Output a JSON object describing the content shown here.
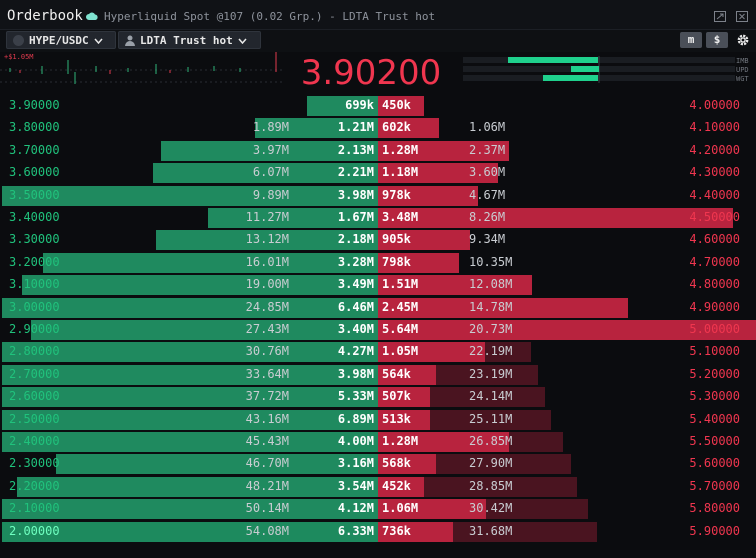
{
  "window": {
    "title": "Orderbook",
    "subtitle": "Hyperliquid Spot @107 (0.02 Grp.) - LDTA Trust hot",
    "icons": [
      "cloud-icon",
      "popout-icon",
      "close-icon"
    ]
  },
  "toolbar": {
    "symbol": "HYPE/USDC",
    "account": "LDTA Trust hot",
    "mode_label": "m",
    "currency_label": "$"
  },
  "trades_strip": {
    "label": "+$1.05M"
  },
  "mid_price": "3.90200",
  "indicators": {
    "labels": [
      "IMB",
      "UPD",
      "WGT"
    ],
    "color": "#1fd18d"
  },
  "colors": {
    "bid": "#20c27c",
    "ask": "#f0364f",
    "bid_bar": "#1f8a5f",
    "ask_bar": "#b8233e"
  },
  "orderbook": {
    "rows": [
      {
        "bid_price": "3.90000",
        "bid_total": "",
        "bid_size": "699k",
        "ask_size": "450k",
        "ask_total": "",
        "ask_price": "4.00000"
      },
      {
        "bid_price": "3.80000",
        "bid_total": "1.89M",
        "bid_size": "1.21M",
        "ask_size": "602k",
        "ask_total": "1.06M",
        "ask_price": "4.10000"
      },
      {
        "bid_price": "3.70000",
        "bid_total": "3.97M",
        "bid_size": "2.13M",
        "ask_size": "1.28M",
        "ask_total": "2.37M",
        "ask_price": "4.20000"
      },
      {
        "bid_price": "3.60000",
        "bid_total": "6.07M",
        "bid_size": "2.21M",
        "ask_size": "1.18M",
        "ask_total": "3.60M",
        "ask_price": "4.30000"
      },
      {
        "bid_price": "3.50000",
        "bid_total": "9.89M",
        "bid_size": "3.98M",
        "ask_size": "978k",
        "ask_total": "4.67M",
        "ask_price": "4.40000"
      },
      {
        "bid_price": "3.40000",
        "bid_total": "11.27M",
        "bid_size": "1.67M",
        "ask_size": "3.48M",
        "ask_total": "8.26M",
        "ask_price": "4.50000"
      },
      {
        "bid_price": "3.30000",
        "bid_total": "13.12M",
        "bid_size": "2.18M",
        "ask_size": "905k",
        "ask_total": "9.34M",
        "ask_price": "4.60000"
      },
      {
        "bid_price": "3.20000",
        "bid_total": "16.01M",
        "bid_size": "3.28M",
        "ask_size": "798k",
        "ask_total": "10.35M",
        "ask_price": "4.70000"
      },
      {
        "bid_price": "3.10000",
        "bid_total": "19.00M",
        "bid_size": "3.49M",
        "ask_size": "1.51M",
        "ask_total": "12.08M",
        "ask_price": "4.80000"
      },
      {
        "bid_price": "3.00000",
        "bid_total": "24.85M",
        "bid_size": "6.46M",
        "ask_size": "2.45M",
        "ask_total": "14.78M",
        "ask_price": "4.90000"
      },
      {
        "bid_price": "2.90000",
        "bid_total": "27.43M",
        "bid_size": "3.40M",
        "ask_size": "5.64M",
        "ask_total": "20.73M",
        "ask_price": "5.00000"
      },
      {
        "bid_price": "2.80000",
        "bid_total": "30.76M",
        "bid_size": "4.27M",
        "ask_size": "1.05M",
        "ask_total": "22.19M",
        "ask_price": "5.10000"
      },
      {
        "bid_price": "2.70000",
        "bid_total": "33.64M",
        "bid_size": "3.98M",
        "ask_size": "564k",
        "ask_total": "23.19M",
        "ask_price": "5.20000"
      },
      {
        "bid_price": "2.60000",
        "bid_total": "37.72M",
        "bid_size": "5.33M",
        "ask_size": "507k",
        "ask_total": "24.14M",
        "ask_price": "5.30000"
      },
      {
        "bid_price": "2.50000",
        "bid_total": "43.16M",
        "bid_size": "6.89M",
        "ask_size": "513k",
        "ask_total": "25.11M",
        "ask_price": "5.40000"
      },
      {
        "bid_price": "2.40000",
        "bid_total": "45.43M",
        "bid_size": "4.00M",
        "ask_size": "1.28M",
        "ask_total": "26.85M",
        "ask_price": "5.50000"
      },
      {
        "bid_price": "2.30000",
        "bid_total": "46.70M",
        "bid_size": "3.16M",
        "ask_size": "568k",
        "ask_total": "27.90M",
        "ask_price": "5.60000"
      },
      {
        "bid_price": "2.20000",
        "bid_total": "48.21M",
        "bid_size": "3.54M",
        "ask_size": "452k",
        "ask_total": "28.85M",
        "ask_price": "5.70000"
      },
      {
        "bid_price": "2.10000",
        "bid_total": "50.14M",
        "bid_size": "4.12M",
        "ask_size": "1.06M",
        "ask_total": "30.42M",
        "ask_price": "5.80000"
      },
      {
        "bid_price": "2.00000",
        "bid_total": "54.08M",
        "bid_size": "6.33M",
        "ask_size": "736k",
        "ask_total": "31.68M",
        "ask_price": "5.90000"
      }
    ]
  }
}
